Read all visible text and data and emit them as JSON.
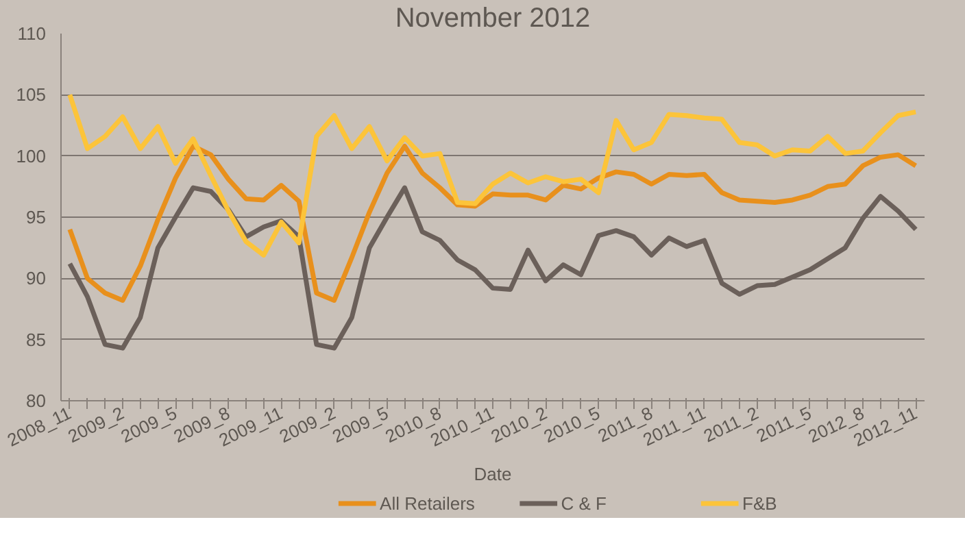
{
  "chart_data": {
    "type": "line",
    "title": "November 2012",
    "xlabel": "Date",
    "categories": [
      "2008_11",
      null,
      null,
      "2009_2",
      null,
      null,
      "2009_5",
      null,
      null,
      "2009_8",
      null,
      null,
      "2009_11",
      null,
      null,
      "2009_2",
      null,
      null,
      "2009_5",
      null,
      null,
      "2010_8",
      null,
      null,
      "2010_11",
      null,
      null,
      "2010_2",
      null,
      null,
      "2010_5",
      null,
      null,
      "2011_8",
      null,
      null,
      "2011_11",
      null,
      null,
      "2011_2",
      null,
      null,
      "2011_5",
      null,
      null,
      "2012_8",
      null,
      null,
      "2012_11"
    ],
    "series": [
      {
        "name": "All Retailers",
        "color": "#e8901c",
        "values": [
          94,
          90,
          88.8,
          88.2,
          91,
          94.8,
          98.2,
          100.8,
          100.1,
          98.1,
          96.5,
          96.4,
          97.6,
          96.3,
          88.8,
          88.2,
          91.7,
          95.4,
          98.6,
          100.8,
          98.6,
          97.4,
          96,
          95.9,
          96.9,
          96.8,
          96.8,
          96.4,
          97.6,
          97.3,
          98.2,
          98.7,
          98.5,
          97.7,
          98.5,
          98.4,
          98.5,
          97,
          96.4,
          96.3,
          96.2,
          96.4,
          96.8,
          97.5,
          97.7,
          99.2,
          99.9,
          100.1,
          99.2
        ]
      },
      {
        "name": "C & F",
        "color": "#6b605a",
        "values": [
          91.2,
          88.5,
          84.6,
          84.3,
          86.8,
          92.5,
          95,
          97.4,
          97.1,
          95.6,
          93.4,
          94.2,
          94.7,
          93.4,
          84.6,
          84.3,
          86.8,
          92.5,
          95,
          97.4,
          93.8,
          93.1,
          91.5,
          90.7,
          89.2,
          89.1,
          92.3,
          89.8,
          91.1,
          90.3,
          93.5,
          93.9,
          93.4,
          91.9,
          93.3,
          92.6,
          93.1,
          89.6,
          88.7,
          89.4,
          89.5,
          90.1,
          90.7,
          91.6,
          92.5,
          94.9,
          96.7,
          95.5,
          94
        ]
      },
      {
        "name": "F&B",
        "color": "#fcc43a",
        "values": [
          105,
          100.6,
          101.6,
          103.2,
          100.6,
          102.4,
          99.4,
          101.4,
          98.4,
          95.5,
          93,
          91.9,
          94.6,
          92.9,
          101.6,
          103.3,
          100.6,
          102.4,
          99.6,
          101.5,
          100,
          100.2,
          96.2,
          96.1,
          97.7,
          98.6,
          97.8,
          98.3,
          97.9,
          98.1,
          97,
          102.9,
          100.5,
          101.1,
          103.4,
          103.3,
          103.1,
          103,
          101.1,
          100.9,
          100,
          100.5,
          100.4,
          101.6,
          100.2,
          100.4,
          101.9,
          103.3,
          103.6
        ]
      }
    ],
    "ylim": [
      80,
      110
    ],
    "yticks": [
      80,
      85,
      90,
      95,
      100,
      105,
      110
    ],
    "grid": "y",
    "legend": "bottom",
    "marker": "none",
    "line_style": "solid"
  }
}
